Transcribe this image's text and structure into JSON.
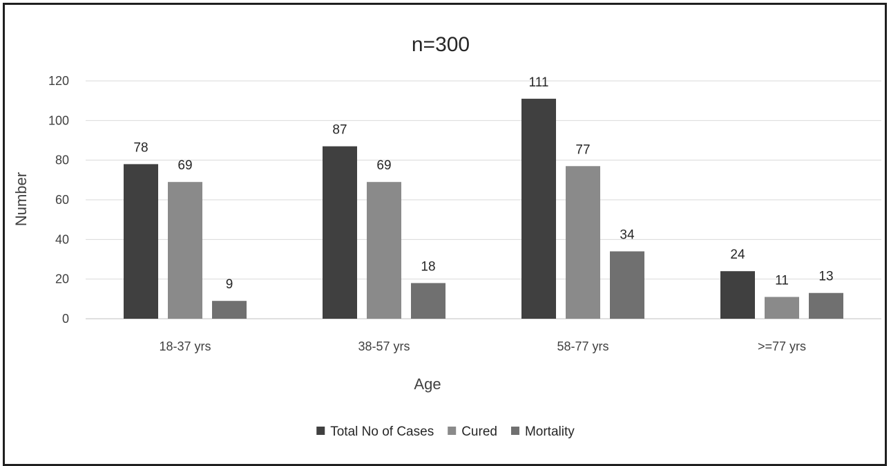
{
  "chart_data": {
    "type": "bar",
    "title": "n=300",
    "xlabel": "Age",
    "ylabel": "Number",
    "categories": [
      "18-37 yrs",
      "38-57 yrs",
      "58-77 yrs",
      ">=77 yrs"
    ],
    "series": [
      {
        "name": "Total No of  Cases",
        "values": [
          78,
          87,
          111,
          24
        ],
        "color": "#404040"
      },
      {
        "name": "Cured",
        "values": [
          69,
          69,
          77,
          11
        ],
        "color": "#8a8a8a"
      },
      {
        "name": "Mortality",
        "values": [
          9,
          18,
          34,
          13
        ],
        "color": "#707070"
      }
    ],
    "ylim": [
      0,
      120
    ],
    "yticks": [
      0,
      20,
      40,
      60,
      80,
      100,
      120
    ],
    "grid": true,
    "legend": "bottom"
  }
}
